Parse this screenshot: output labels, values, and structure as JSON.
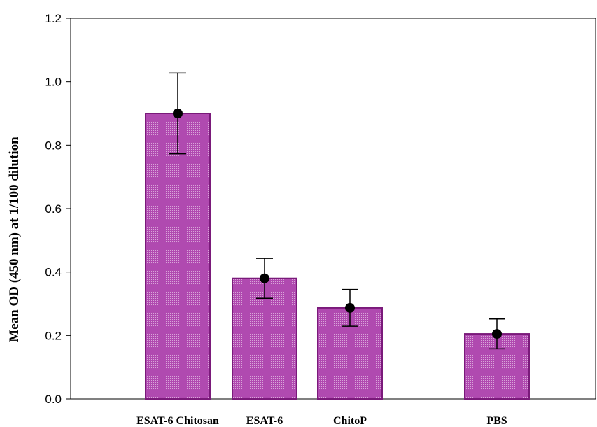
{
  "chart_data": {
    "type": "bar",
    "title": "",
    "xlabel": "",
    "ylabel": "Mean OD (450 nm) at 1/100 dilution",
    "categories": [
      "ESAT-6 Chitosan",
      "ESAT-6",
      "ChitoP",
      "PBS"
    ],
    "values": [
      0.9,
      0.38,
      0.287,
      0.205
    ],
    "error": [
      0.127,
      0.063,
      0.058,
      0.047
    ],
    "ylim": [
      0,
      1.2
    ],
    "yticks": [
      "0.0",
      "0.2",
      "0.4",
      "0.6",
      "0.8",
      "1.0",
      "1.2"
    ],
    "grid": false,
    "legend": "none",
    "colors": {
      "bar_fill": "#b04ab0",
      "bar_edge": "#7a1a7a",
      "marker": "#000000",
      "axis": "#000000"
    }
  }
}
